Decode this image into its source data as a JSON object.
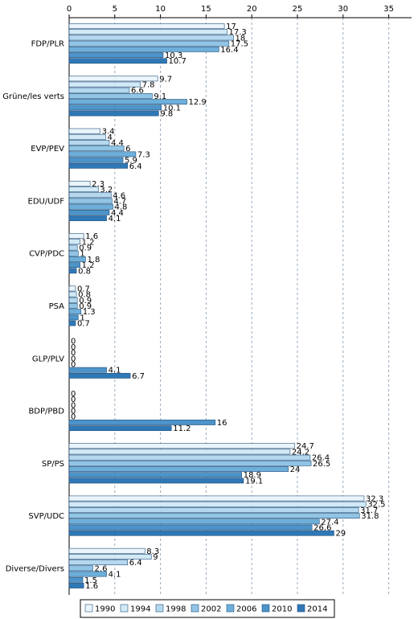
{
  "chart_data": {
    "type": "bar",
    "orientation": "horizontal",
    "categories": [
      "FDP/PLR",
      "Grüne/les verts",
      "EVP/PEV",
      "EDU/UDF",
      "CVP/PDC",
      "PSA",
      "GLP/PLV",
      "BDP/PBD",
      "SP/PS",
      "SVP/UDC",
      "Diverse/Divers"
    ],
    "series": [
      {
        "name": "1990",
        "color": "#eaf5fb",
        "values": [
          17,
          9.7,
          3.4,
          2.3,
          1.6,
          0.7,
          0,
          0,
          24.7,
          32.3,
          8.3
        ]
      },
      {
        "name": "1994",
        "color": "#d2e9f6",
        "values": [
          17.3,
          7.8,
          4,
          3.2,
          1.2,
          0.8,
          0,
          0,
          24.2,
          32.5,
          9
        ]
      },
      {
        "name": "1998",
        "color": "#b5d8ef",
        "values": [
          18,
          6.6,
          4.4,
          4.6,
          0.9,
          0.9,
          0,
          0,
          26.4,
          31.7,
          6.4
        ]
      },
      {
        "name": "2002",
        "color": "#92c5e5",
        "values": [
          17.5,
          9.1,
          6,
          4.7,
          1,
          0.9,
          0,
          0,
          26.5,
          31.8,
          2.6
        ]
      },
      {
        "name": "2006",
        "color": "#6eafda",
        "values": [
          16.4,
          12.9,
          7.3,
          4.8,
          1.8,
          1.3,
          0,
          0,
          24,
          27.4,
          4.1
        ]
      },
      {
        "name": "2010",
        "color": "#4c94ca",
        "values": [
          10.3,
          10.1,
          5.9,
          4.4,
          1.2,
          1,
          4.1,
          16,
          18.9,
          26.6,
          1.5
        ]
      },
      {
        "name": "2014",
        "color": "#2f78b6",
        "values": [
          10.7,
          9.8,
          6.4,
          4.1,
          0.8,
          0.7,
          6.7,
          11.2,
          19.1,
          29,
          1.6
        ]
      }
    ],
    "xlim": [
      0,
      37.5
    ],
    "xticks": [
      0,
      5,
      10,
      15,
      20,
      25,
      30,
      35
    ],
    "grid": true,
    "legend": "bottom"
  }
}
